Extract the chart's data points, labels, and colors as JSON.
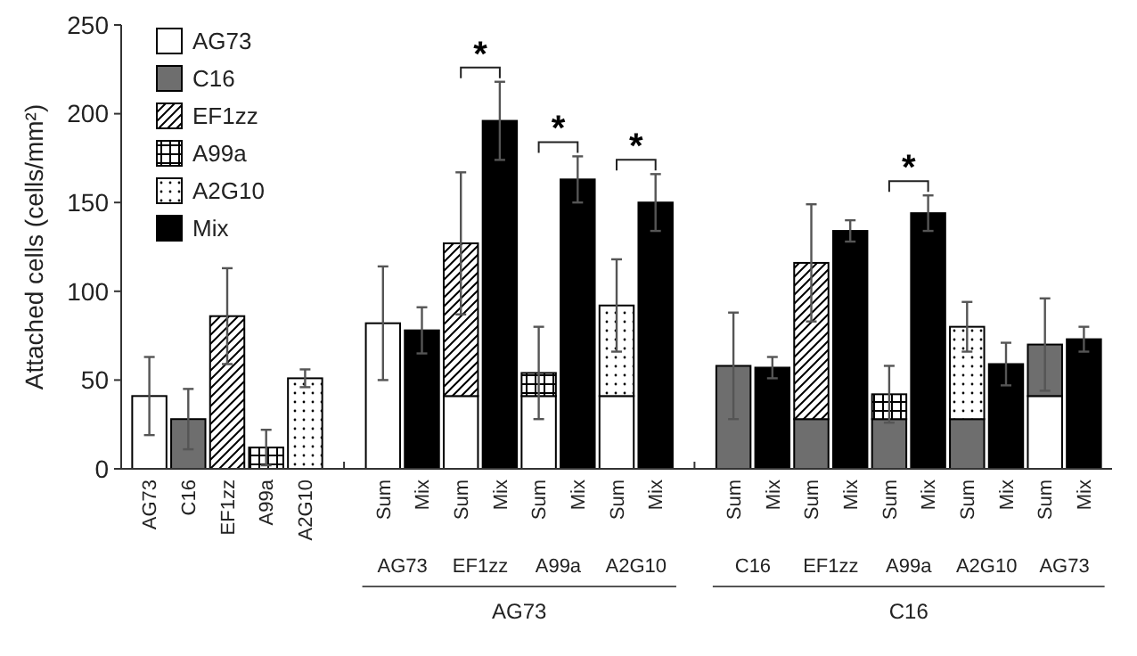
{
  "chart_data": {
    "type": "bar",
    "stacked": true,
    "ylabel": "Attached cells (cells/mm²)",
    "ylim": [
      0,
      250
    ],
    "yticks": [
      0,
      50,
      100,
      150,
      200,
      250
    ],
    "grid": false,
    "legend": "top left",
    "categories": [
      "AG73",
      "C16",
      "EF1zz",
      "A99a",
      "A2G10",
      null,
      "Sum",
      "Mix",
      "Sum",
      "Mix",
      "Sum",
      "Mix",
      "Sum",
      "Mix",
      null,
      "Sum",
      "Mix",
      "Sum",
      "Mix",
      "Sum",
      "Mix",
      "Sum",
      "Mix",
      "Sum",
      "Mix"
    ],
    "series": [
      {
        "name": "AG73",
        "color": "#ffffff",
        "values": [
          41,
          null,
          null,
          null,
          null,
          null,
          82,
          null,
          41,
          null,
          41,
          null,
          41,
          null,
          null,
          null,
          null,
          null,
          null,
          null,
          null,
          null,
          null,
          41,
          null
        ],
        "errors": [
          22,
          null,
          null,
          null,
          null,
          null,
          32,
          null,
          null,
          null,
          null,
          null,
          null,
          null,
          null,
          null,
          null,
          null,
          null,
          null,
          null,
          null,
          null,
          null,
          null
        ]
      },
      {
        "name": "C16",
        "color": "#6e6e6e",
        "values": [
          null,
          28,
          null,
          null,
          null,
          null,
          null,
          null,
          null,
          null,
          null,
          null,
          null,
          null,
          null,
          58,
          null,
          28,
          null,
          28,
          null,
          28,
          null,
          29,
          null
        ],
        "errors": [
          null,
          17,
          null,
          null,
          null,
          null,
          null,
          null,
          null,
          null,
          null,
          null,
          null,
          null,
          null,
          30,
          null,
          null,
          null,
          null,
          null,
          null,
          null,
          26,
          null
        ]
      },
      {
        "name": "EF1zz",
        "color": "#000000",
        "values": [
          null,
          null,
          86,
          null,
          null,
          null,
          null,
          null,
          86,
          null,
          null,
          null,
          null,
          null,
          null,
          null,
          null,
          88,
          null,
          null,
          null,
          null,
          null,
          null,
          null
        ],
        "errors": [
          null,
          null,
          27,
          null,
          null,
          null,
          null,
          null,
          40,
          null,
          null,
          null,
          null,
          null,
          null,
          null,
          null,
          33,
          null,
          null,
          null,
          null,
          null,
          null,
          null
        ]
      },
      {
        "name": "A99a",
        "color": "#000000",
        "values": [
          null,
          null,
          null,
          12,
          null,
          null,
          null,
          null,
          null,
          null,
          13,
          null,
          null,
          null,
          null,
          null,
          null,
          null,
          null,
          14,
          null,
          null,
          null,
          null,
          null
        ],
        "errors": [
          null,
          null,
          null,
          10,
          null,
          null,
          null,
          null,
          null,
          null,
          26,
          null,
          null,
          null,
          null,
          null,
          null,
          null,
          null,
          16,
          null,
          null,
          null,
          null,
          null
        ]
      },
      {
        "name": "A2G10",
        "color": "#000000",
        "values": [
          null,
          null,
          null,
          null,
          51,
          null,
          null,
          null,
          null,
          null,
          null,
          null,
          51,
          null,
          null,
          null,
          null,
          null,
          null,
          null,
          null,
          52,
          null,
          null,
          null
        ],
        "errors": [
          null,
          null,
          null,
          null,
          5,
          null,
          null,
          null,
          null,
          null,
          null,
          null,
          26,
          null,
          null,
          null,
          null,
          null,
          null,
          null,
          null,
          14,
          null,
          null,
          null
        ]
      },
      {
        "name": "Mix",
        "color": "#000000",
        "values": [
          null,
          null,
          null,
          null,
          null,
          null,
          null,
          78,
          null,
          196,
          null,
          163,
          null,
          150,
          null,
          null,
          57,
          null,
          134,
          null,
          144,
          null,
          59,
          null,
          73
        ],
        "errors": [
          null,
          null,
          null,
          null,
          null,
          null,
          null,
          13,
          null,
          22,
          null,
          13,
          null,
          16,
          null,
          null,
          6,
          null,
          6,
          null,
          10,
          null,
          12,
          null,
          7
        ]
      }
    ],
    "annotations": [
      "AG73",
      "EF1zz",
      "A99a",
      "A2G10",
      "C16",
      "EF1zz",
      "A99a",
      "A2G10",
      "AG73",
      "AG73",
      "C16",
      "*",
      "*",
      "*",
      "*"
    ]
  }
}
